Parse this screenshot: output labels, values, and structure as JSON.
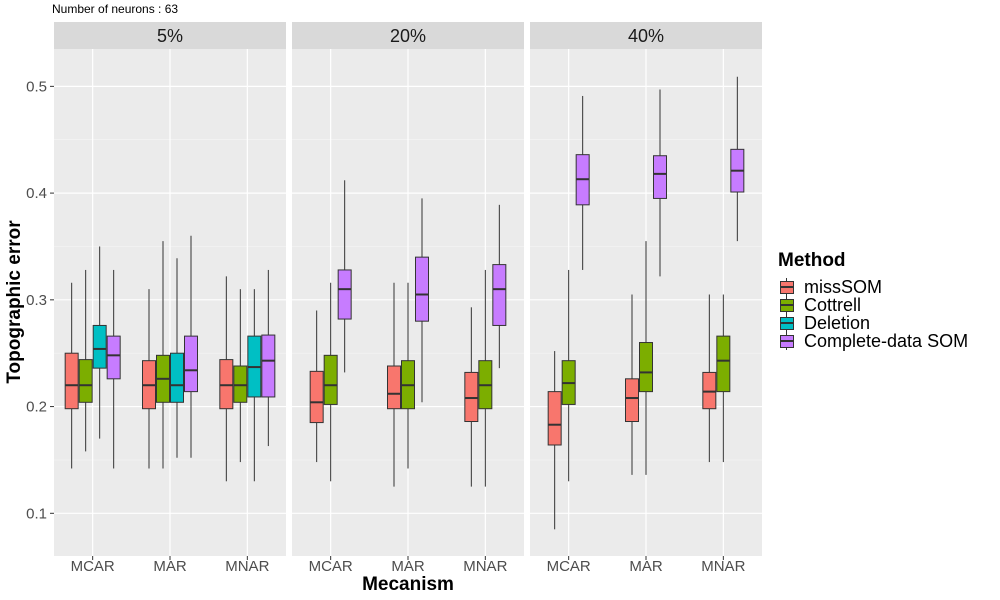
{
  "subtitle": "Number of neurons : 63",
  "chart_data": {
    "type": "boxplot",
    "xlabel": "Mecanism",
    "ylabel": "Topographic error",
    "ylim": [
      0.06,
      0.535
    ],
    "yticks": [
      0.1,
      0.2,
      0.3,
      0.4,
      0.5
    ],
    "ytick_labels": [
      "0.1",
      "0.2",
      "0.3",
      "0.4",
      "0.5"
    ],
    "facets": [
      "5%",
      "20%",
      "40%"
    ],
    "categories": [
      "MCAR",
      "MAR",
      "MNAR"
    ],
    "legend": {
      "title": "Method",
      "position": "right",
      "entries": [
        {
          "name": "missSOM",
          "color": "#F8766D"
        },
        {
          "name": "Cottrell",
          "color": "#7CAE00"
        },
        {
          "name": "Deletion",
          "color": "#00BFC4"
        },
        {
          "name": "Complete-data SOM",
          "color": "#C77CFF"
        }
      ]
    },
    "boxes": {
      "5%": {
        "MCAR": {
          "missSOM": [
            0.142,
            0.198,
            0.22,
            0.25,
            0.316
          ],
          "Cottrell": [
            0.158,
            0.204,
            0.22,
            0.244,
            0.328
          ],
          "Deletion": [
            0.17,
            0.236,
            0.254,
            0.276,
            0.35
          ],
          "Complete-data SOM": [
            0.142,
            0.226,
            0.248,
            0.266,
            0.328
          ]
        },
        "MAR": {
          "missSOM": [
            0.142,
            0.198,
            0.22,
            0.243,
            0.31
          ],
          "Cottrell": [
            0.142,
            0.204,
            0.226,
            0.248,
            0.355
          ],
          "Deletion": [
            0.152,
            0.204,
            0.22,
            0.25,
            0.339
          ],
          "Complete-data SOM": [
            0.152,
            0.214,
            0.234,
            0.266,
            0.36
          ]
        },
        "MNAR": {
          "missSOM": [
            0.13,
            0.198,
            0.22,
            0.244,
            0.322
          ],
          "Cottrell": [
            0.148,
            0.204,
            0.22,
            0.238,
            0.31
          ],
          "Deletion": [
            0.13,
            0.209,
            0.237,
            0.266,
            0.31
          ],
          "Complete-data SOM": [
            0.163,
            0.209,
            0.243,
            0.267,
            0.328
          ]
        }
      },
      "20%": {
        "MCAR": {
          "missSOM": [
            0.148,
            0.185,
            0.204,
            0.233,
            0.29
          ],
          "Cottrell": [
            0.13,
            0.202,
            0.22,
            0.248,
            0.316
          ],
          "Complete-data SOM": [
            0.232,
            0.282,
            0.31,
            0.328,
            0.412
          ]
        },
        "MAR": {
          "missSOM": [
            0.125,
            0.198,
            0.212,
            0.238,
            0.316
          ],
          "Cottrell": [
            0.142,
            0.198,
            0.22,
            0.243,
            0.316
          ],
          "Complete-data SOM": [
            0.204,
            0.28,
            0.305,
            0.34,
            0.395
          ]
        },
        "MNAR": {
          "missSOM": [
            0.125,
            0.186,
            0.208,
            0.232,
            0.293
          ],
          "Cottrell": [
            0.125,
            0.198,
            0.22,
            0.243,
            0.328
          ],
          "Complete-data SOM": [
            0.236,
            0.276,
            0.31,
            0.333,
            0.389
          ]
        }
      },
      "40%": {
        "MCAR": {
          "missSOM": [
            0.085,
            0.164,
            0.183,
            0.214,
            0.252
          ],
          "Cottrell": [
            0.13,
            0.202,
            0.222,
            0.243,
            0.328
          ],
          "Complete-data SOM": [
            0.328,
            0.389,
            0.413,
            0.436,
            0.491
          ]
        },
        "MAR": {
          "missSOM": [
            0.136,
            0.186,
            0.208,
            0.226,
            0.305
          ],
          "Cottrell": [
            0.136,
            0.214,
            0.232,
            0.26,
            0.355
          ],
          "Complete-data SOM": [
            0.322,
            0.395,
            0.418,
            0.435,
            0.497
          ]
        },
        "MNAR": {
          "missSOM": [
            0.148,
            0.198,
            0.214,
            0.232,
            0.305
          ],
          "Cottrell": [
            0.148,
            0.214,
            0.243,
            0.266,
            0.305
          ],
          "Complete-data SOM": [
            0.355,
            0.401,
            0.421,
            0.441,
            0.509
          ]
        }
      }
    }
  }
}
